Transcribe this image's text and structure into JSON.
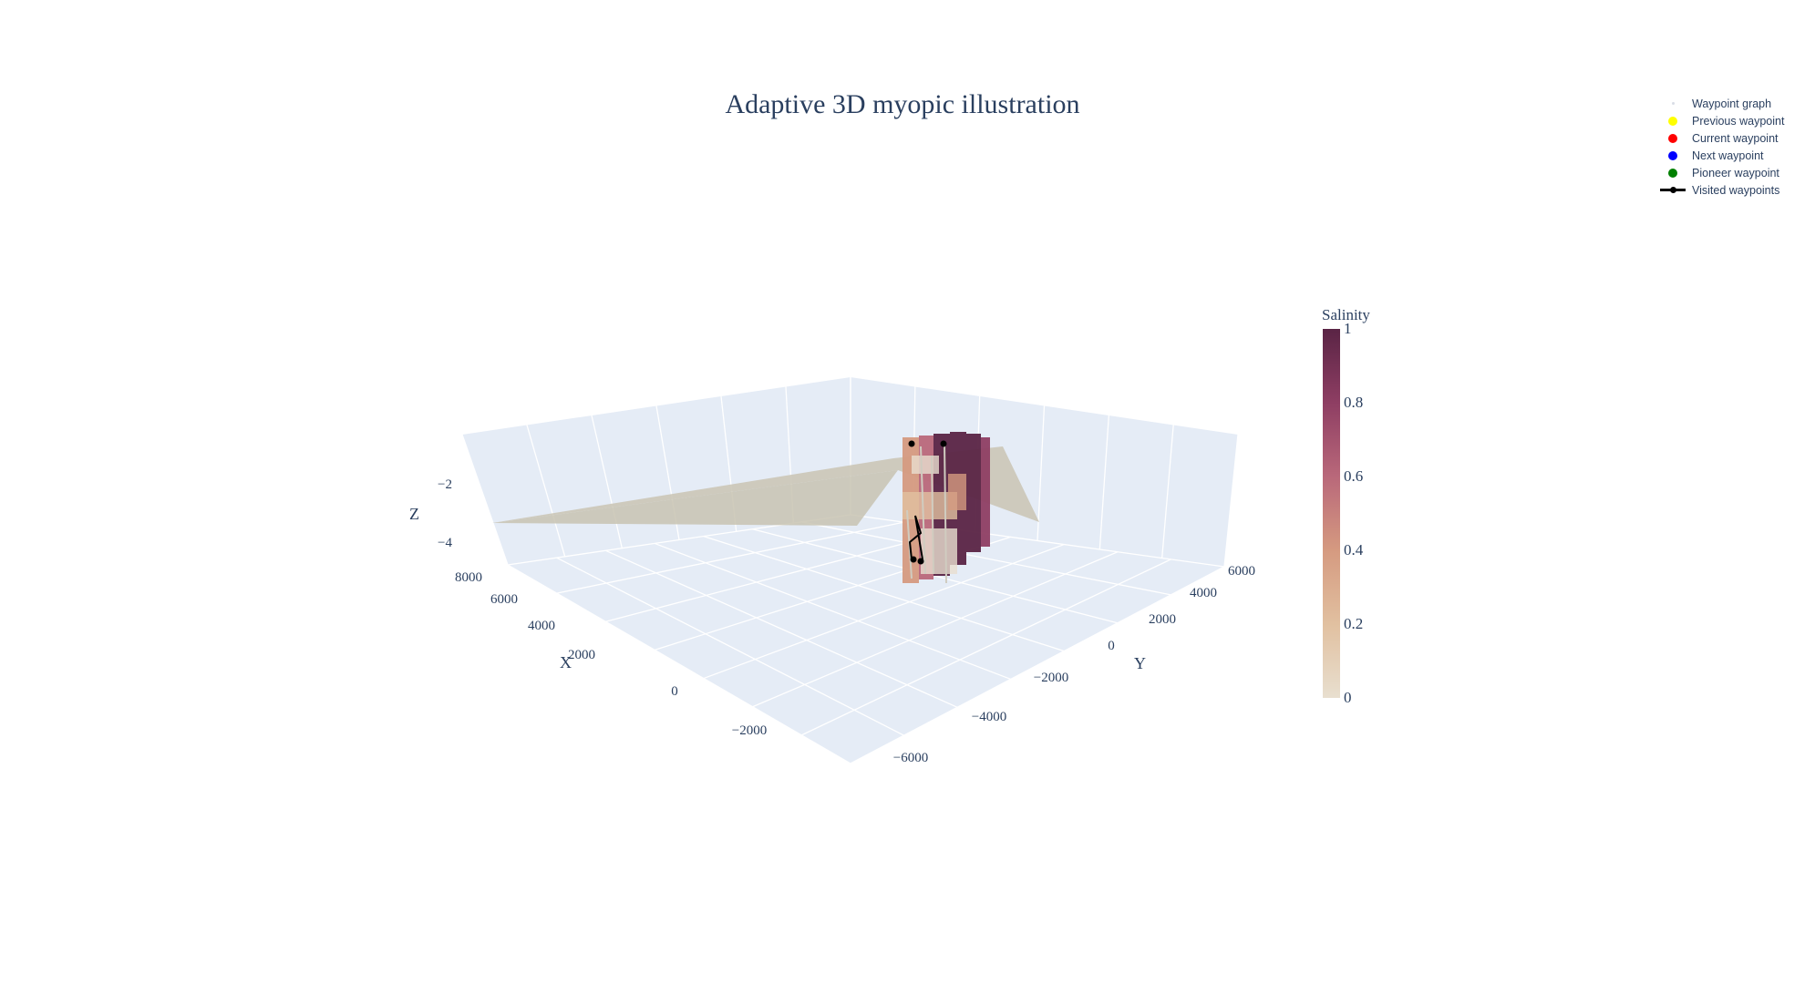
{
  "chart_data": {
    "type": "scatter3d",
    "title": "Adaptive 3D myopic illustration",
    "axes": {
      "x": {
        "label": "X",
        "ticks": [
          "8000",
          "6000",
          "4000",
          "2000",
          "0",
          "−2000"
        ]
      },
      "y": {
        "label": "Y",
        "ticks": [
          "6000",
          "4000",
          "2000",
          "0",
          "−2000",
          "−4000",
          "−6000"
        ]
      },
      "z": {
        "label": "Z",
        "ticks": [
          "−2",
          "−4"
        ]
      }
    },
    "colorbar": {
      "title": "Salinity",
      "ticks": [
        "1",
        "0.8",
        "0.6",
        "0.4",
        "0.2",
        "0"
      ],
      "range": [
        0,
        1
      ]
    },
    "legend": {
      "placement": "top-right",
      "items": [
        {
          "label": "Waypoint graph",
          "color": "#d9dde6",
          "marker": "tiny-dot"
        },
        {
          "label": "Previous waypoint",
          "color": "#ffff00",
          "marker": "dot"
        },
        {
          "label": "Current waypoint",
          "color": "#ff0000",
          "marker": "dot"
        },
        {
          "label": "Next waypoint",
          "color": "#0000ff",
          "marker": "dot"
        },
        {
          "label": "Pioneer waypoint",
          "color": "#008000",
          "marker": "dot"
        },
        {
          "label": "Visited waypoints",
          "color": "#000000",
          "marker": "line"
        }
      ]
    },
    "grid": true,
    "colorscale": [
      "#e8dfcf",
      "#e1c0a0",
      "#d59a80",
      "#b9687a",
      "#8e3e63",
      "#5a2445"
    ]
  }
}
